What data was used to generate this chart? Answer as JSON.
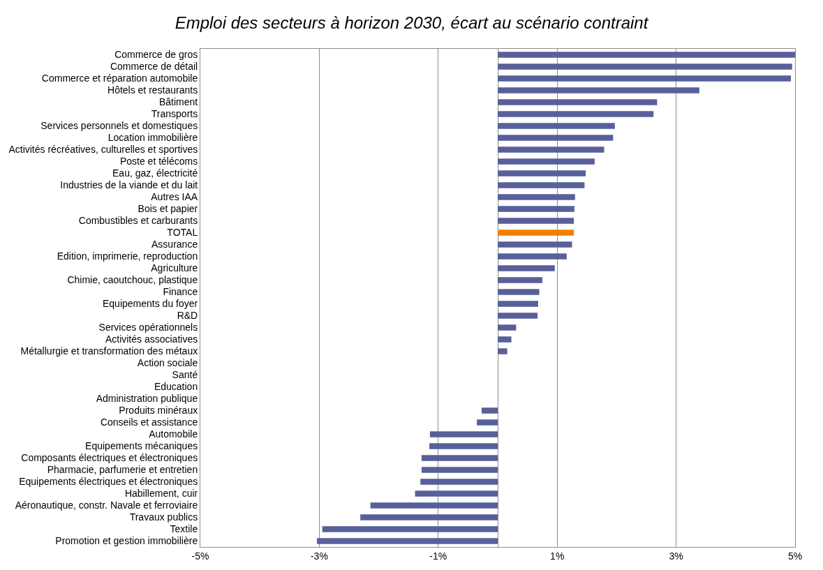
{
  "chart_data": {
    "type": "bar",
    "orientation": "horizontal",
    "title": "Emploi des secteurs à horizon 2030, écart au scénario contraint",
    "categories": [
      "Commerce de gros",
      "Commerce de détail",
      "Commerce et réparation automobile",
      "Hôtels et restaurants",
      "Bâtiment",
      "Transports",
      "Services personnels et domestiques",
      "Location immobilière",
      "Activités récréatives, culturelles et sportives",
      "Poste et télécoms",
      "Eau, gaz, électricité",
      "Industries de la viande et du lait",
      "Autres IAA",
      "Bois et papier",
      "Combustibles et carburants",
      "TOTAL",
      "Assurance",
      "Edition, imprimerie, reproduction",
      "Agriculture",
      "Chimie, caoutchouc, plastique",
      "Finance",
      "Equipements du foyer",
      "R&D",
      "Services opérationnels",
      "Activités associatives",
      "Métallurgie et transformation des métaux",
      "Action sociale",
      "Santé",
      "Education",
      "Administration publique",
      "Produits minéraux",
      "Conseils et assistance",
      "Automobile",
      "Equipements mécaniques",
      "Composants électriques et électroniques",
      "Pharmacie, parfumerie et entretien",
      "Equipements électriques et électroniques",
      "Habillement, cuir",
      "Aéronautique, constr. Navale et ferroviaire",
      "Travaux publics",
      "Textile",
      "Promotion et gestion immobilière"
    ],
    "values": [
      5.0,
      4.95,
      4.93,
      3.39,
      2.68,
      2.62,
      1.97,
      1.94,
      1.79,
      1.63,
      1.48,
      1.46,
      1.3,
      1.29,
      1.28,
      1.28,
      1.25,
      1.16,
      0.96,
      0.75,
      0.7,
      0.68,
      0.67,
      0.31,
      0.23,
      0.16,
      0,
      0,
      0,
      0,
      -0.27,
      -0.35,
      -1.14,
      -1.15,
      -1.28,
      -1.28,
      -1.3,
      -1.39,
      -2.14,
      -2.31,
      -2.95,
      -3.04
    ],
    "colors": [
      "#58609a",
      "#58609a",
      "#58609a",
      "#58609a",
      "#58609a",
      "#58609a",
      "#58609a",
      "#58609a",
      "#58609a",
      "#58609a",
      "#58609a",
      "#58609a",
      "#58609a",
      "#58609a",
      "#58609a",
      "#ee8000",
      "#58609a",
      "#58609a",
      "#58609a",
      "#58609a",
      "#58609a",
      "#58609a",
      "#58609a",
      "#58609a",
      "#58609a",
      "#58609a",
      "#58609a",
      "#58609a",
      "#58609a",
      "#58609a",
      "#58609a",
      "#58609a",
      "#58609a",
      "#58609a",
      "#58609a",
      "#58609a",
      "#58609a",
      "#58609a",
      "#58609a",
      "#58609a",
      "#58609a",
      "#58609a"
    ],
    "xlim": [
      -5,
      5
    ],
    "xticks": [
      {
        "value": -5,
        "label": "-5%"
      },
      {
        "value": -3,
        "label": "-3%"
      },
      {
        "value": -1,
        "label": "-1%"
      },
      {
        "value": 1,
        "label": "1%"
      },
      {
        "value": 3,
        "label": "3%"
      },
      {
        "value": 5,
        "label": "5%"
      }
    ],
    "grid": "x"
  }
}
